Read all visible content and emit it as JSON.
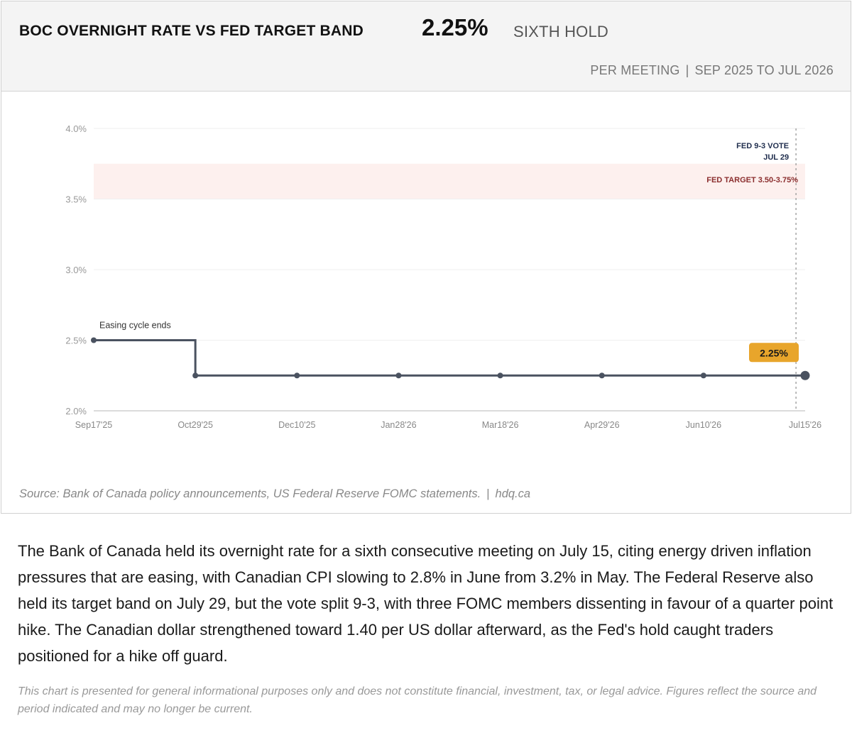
{
  "header": {
    "title": "BOC OVERNIGHT RATE VS FED TARGET BAND",
    "headline_value": "2.25%",
    "headline_note": "SIXTH HOLD",
    "subtitle_left": "PER MEETING",
    "subtitle_separator": "|",
    "subtitle_right": "SEP 2025 TO JUL 2026"
  },
  "chart_data": {
    "type": "line",
    "step": true,
    "x": [
      "Sep17'25",
      "Oct29'25",
      "Dec10'25",
      "Jan28'26",
      "Mar18'26",
      "Apr29'26",
      "Jun10'26",
      "Jul15'26"
    ],
    "series": [
      {
        "values": [
          2.5,
          2.25,
          2.25,
          2.25,
          2.25,
          2.25,
          2.25,
          2.25
        ],
        "color": "#4a5260"
      }
    ],
    "ylim": [
      2.0,
      4.0
    ],
    "yticks": [
      2.0,
      2.5,
      3.0,
      3.5,
      4.0
    ],
    "ytick_labels": [
      "2.0%",
      "2.5%",
      "3.0%",
      "3.5%",
      "4.0%"
    ],
    "grid": true,
    "band": {
      "from": 3.5,
      "to": 3.75,
      "label": "FED TARGET 3.50-3.75%",
      "fill": "#fdf0ee",
      "label_color": "#8b2e2e"
    },
    "vline": {
      "position_between": [
        "Jun10'26",
        "Jul15'26"
      ],
      "position_fraction": 0.91,
      "label_line1": "FED 9-3 VOTE",
      "label_line2": "JUL 29",
      "label_color": "#1f2d4d"
    },
    "annotations": [
      {
        "x": "Sep17'25",
        "y": 2.5,
        "text": "Easing cycle ends"
      }
    ],
    "last_value_label": {
      "text": "2.25%",
      "fill": "#e8a52b"
    }
  },
  "source": {
    "text": "Source: Bank of Canada policy announcements, US Federal Reserve FOMC statements.",
    "separator": "|",
    "site": "hdq.ca"
  },
  "body": {
    "paragraph": "The Bank of Canada held its overnight rate for a sixth consecutive meeting on July 15, citing energy driven inflation pressures that are easing, with Canadian CPI slowing to 2.8% in June from 3.2% in May. The Federal Reserve also held its target band on July 29, but the vote split 9-3, with three FOMC members dissenting in favour of a quarter point hike. The Canadian dollar strengthened toward 1.40 per US dollar afterward, as the Fed's hold caught traders positioned for a hike off guard."
  },
  "disclaimer": "This chart is presented for general informational purposes only and does not constitute financial, investment, tax, or legal advice. Figures reflect the source and period indicated and may no longer be current."
}
